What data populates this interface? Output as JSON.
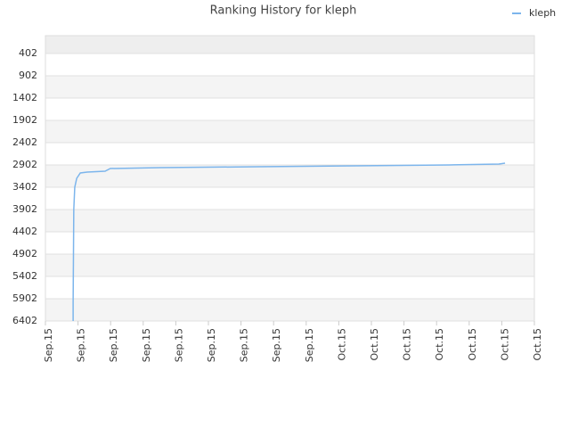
{
  "chart_data": {
    "type": "line",
    "title": "Ranking History for kleph",
    "xlim": [
      0,
      15
    ],
    "xticks": [
      {
        "value": 0,
        "label": "Sep.15"
      },
      {
        "value": 1,
        "label": "Sep.15"
      },
      {
        "value": 2,
        "label": "Sep.15"
      },
      {
        "value": 3,
        "label": "Sep.15"
      },
      {
        "value": 4,
        "label": "Sep.15"
      },
      {
        "value": 5,
        "label": "Sep.15"
      },
      {
        "value": 6,
        "label": "Sep.15"
      },
      {
        "value": 7,
        "label": "Sep.15"
      },
      {
        "value": 8,
        "label": "Sep.15"
      },
      {
        "value": 9,
        "label": "Oct.15"
      },
      {
        "value": 10,
        "label": "Oct.15"
      },
      {
        "value": 11,
        "label": "Oct.15"
      },
      {
        "value": 12,
        "label": "Oct.15"
      },
      {
        "value": 13,
        "label": "Oct.15"
      },
      {
        "value": 14,
        "label": "Oct.15"
      },
      {
        "value": 15,
        "label": "Oct.15"
      }
    ],
    "ylim": [
      6402,
      2
    ],
    "yticks": [
      402,
      902,
      1402,
      1902,
      2402,
      2902,
      3402,
      3902,
      4402,
      4902,
      5402,
      5902,
      6402
    ],
    "grid": true,
    "legend": "top-right",
    "x": [
      0.85,
      0.85,
      0.87,
      0.9,
      0.96,
      1.07,
      1.28,
      1.83,
      1.99,
      3.52,
      6.48,
      9.43,
      12.38,
      13.91,
      14.1
    ],
    "series": [
      {
        "name": "kleph",
        "color": "#7cb5ec",
        "values": [
          6402,
          6002,
          3902,
          3402,
          3202,
          3082,
          3062,
          3042,
          2982,
          2962,
          2942,
          2922,
          2902,
          2882,
          2862
        ]
      }
    ]
  }
}
